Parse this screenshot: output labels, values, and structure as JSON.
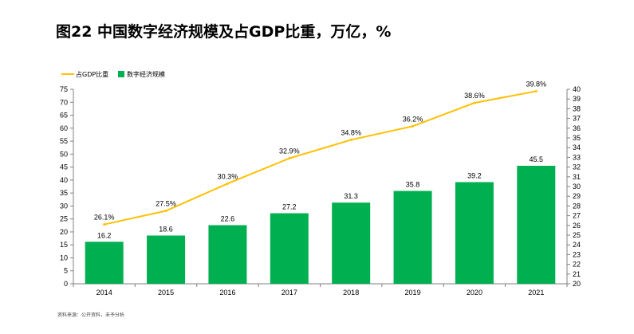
{
  "title": "图22 中国数字经济规模及占GDP比重，万亿，%",
  "source": "资料来源：公开资料，未予分析",
  "colors": {
    "bar": "#00b050",
    "line": "#ffc000",
    "axis": "#808080"
  },
  "chart_data": {
    "type": "bar",
    "categories": [
      "2014",
      "2015",
      "2016",
      "2017",
      "2018",
      "2019",
      "2020",
      "2021"
    ],
    "series": [
      {
        "name": "数字经济规模",
        "type": "bar",
        "axis": "left",
        "values": [
          16.2,
          18.6,
          22.6,
          27.2,
          31.3,
          35.8,
          39.2,
          45.5
        ],
        "labels": [
          "16.2",
          "18.6",
          "22.6",
          "27.2",
          "31.3",
          "35.8",
          "39.2",
          "45.5"
        ]
      },
      {
        "name": "占GDP比重",
        "type": "line",
        "axis": "right",
        "values": [
          26.1,
          27.5,
          30.3,
          32.9,
          34.8,
          36.2,
          38.6,
          39.8
        ],
        "labels": [
          "26.1%",
          "27.5%",
          "30.3%",
          "32.9%",
          "34.8%",
          "36.2%",
          "38.6%",
          "39.8%"
        ]
      }
    ],
    "ylim": [
      0,
      75
    ],
    "y_ticks": [
      0,
      5,
      10,
      15,
      20,
      25,
      30,
      35,
      40,
      45,
      50,
      55,
      60,
      65,
      70,
      75
    ],
    "y2lim": [
      20,
      40
    ],
    "y2_ticks": [
      20,
      21,
      22,
      23,
      24,
      25,
      26,
      27,
      28,
      29,
      30,
      31,
      32,
      33,
      34,
      35,
      36,
      37,
      38,
      39,
      40
    ],
    "grid": false,
    "legend": "top-left"
  }
}
